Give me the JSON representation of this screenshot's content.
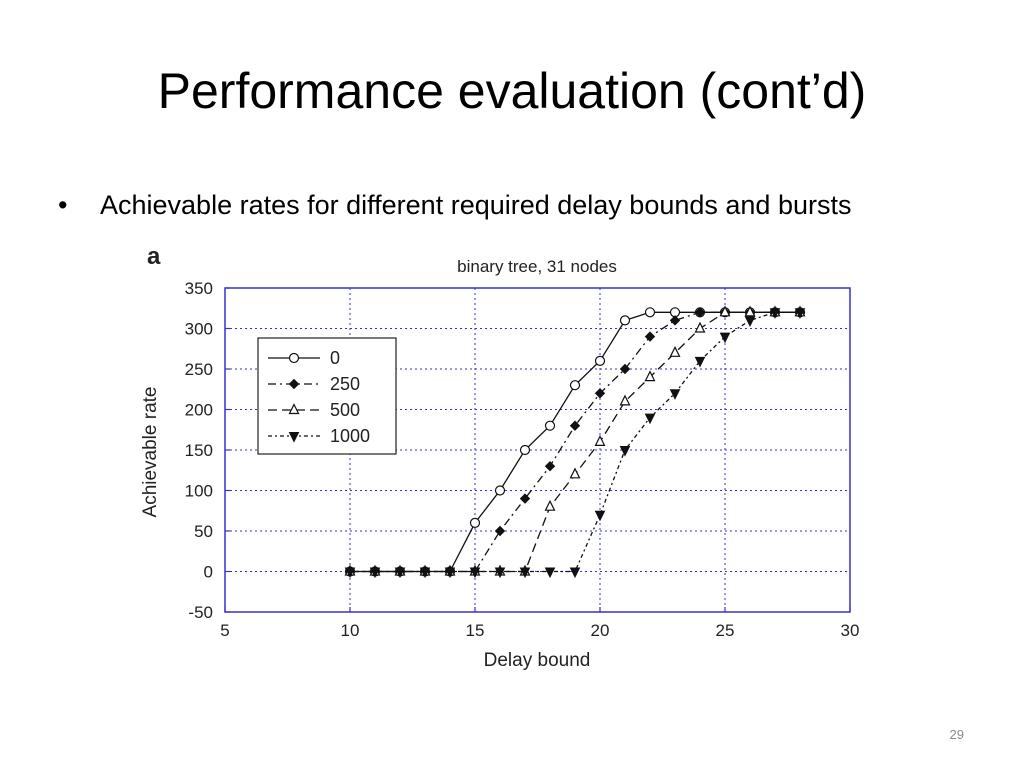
{
  "slide": {
    "title": "Performance evaluation (cont’d)",
    "bullet_char": "•",
    "bullet_text": "Achievable rates for different required delay bounds and bursts",
    "page_number": "29"
  },
  "chart_data": {
    "type": "line",
    "panel_label": "a",
    "title": "binary tree, 31 nodes",
    "xlabel": "Delay bound",
    "ylabel": "Achievable rate",
    "xlim": [
      5,
      30
    ],
    "ylim": [
      -50,
      350
    ],
    "xticks": [
      5,
      10,
      15,
      20,
      25,
      30
    ],
    "yticks": [
      -50,
      0,
      50,
      100,
      150,
      200,
      250,
      300,
      350
    ],
    "grid": true,
    "legend_position": "upper-left",
    "series": [
      {
        "name": "0",
        "line": "solid",
        "marker": "open-circle",
        "x": [
          10,
          11,
          12,
          13,
          14,
          15,
          16,
          17,
          18,
          19,
          20,
          21,
          22,
          23,
          24,
          25,
          26,
          27,
          28
        ],
        "y": [
          0,
          0,
          0,
          0,
          0,
          60,
          100,
          150,
          180,
          230,
          260,
          310,
          320,
          320,
          320,
          320,
          320,
          320,
          320
        ]
      },
      {
        "name": "250",
        "line": "dash-dot",
        "marker": "filled-diamond",
        "x": [
          10,
          11,
          12,
          13,
          14,
          15,
          16,
          17,
          18,
          19,
          20,
          21,
          22,
          23,
          24,
          25,
          26,
          27,
          28
        ],
        "y": [
          0,
          0,
          0,
          0,
          0,
          0,
          50,
          90,
          130,
          180,
          220,
          250,
          290,
          310,
          320,
          320,
          320,
          320,
          320
        ]
      },
      {
        "name": "500",
        "line": "dashed",
        "marker": "open-triangle-up",
        "x": [
          10,
          11,
          12,
          13,
          14,
          15,
          16,
          17,
          18,
          19,
          20,
          21,
          22,
          23,
          24,
          25,
          26,
          27,
          28
        ],
        "y": [
          0,
          0,
          0,
          0,
          0,
          0,
          0,
          0,
          80,
          120,
          160,
          210,
          240,
          270,
          300,
          320,
          320,
          320,
          320
        ]
      },
      {
        "name": "1000",
        "line": "dotted-dash",
        "marker": "filled-triangle-down",
        "x": [
          10,
          11,
          12,
          13,
          14,
          15,
          16,
          17,
          18,
          19,
          20,
          21,
          22,
          23,
          24,
          25,
          26,
          27,
          28
        ],
        "y": [
          0,
          0,
          0,
          0,
          0,
          0,
          0,
          0,
          0,
          0,
          70,
          150,
          190,
          220,
          260,
          290,
          310,
          320,
          320
        ]
      }
    ],
    "colors": {
      "axes": "#3333cc",
      "grid": "#3333cc",
      "series": "#111111"
    }
  }
}
